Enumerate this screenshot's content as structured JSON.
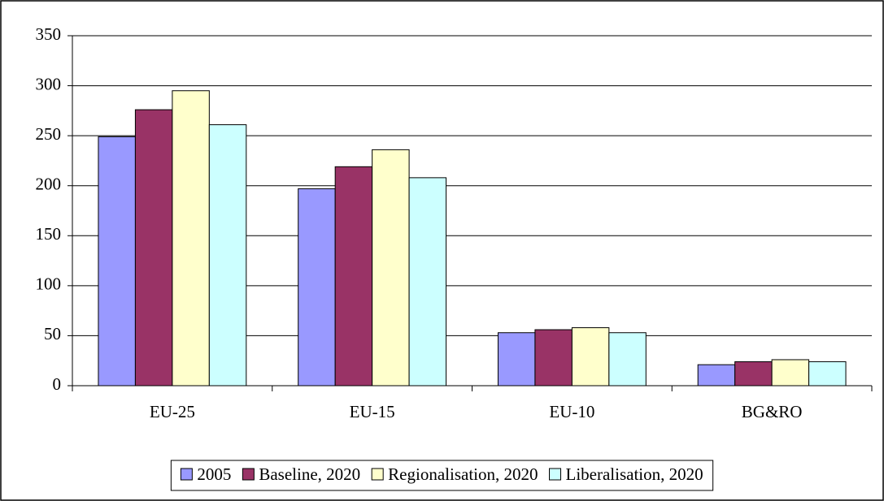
{
  "chart_data": {
    "type": "bar",
    "categories": [
      "EU-25",
      "EU-15",
      "EU-10",
      "BG&RO"
    ],
    "series": [
      {
        "name": "2005",
        "color": "#9999ff",
        "values": [
          249,
          197,
          53,
          21
        ]
      },
      {
        "name": "Baseline, 2020",
        "color": "#993366",
        "values": [
          276,
          219,
          56,
          24
        ]
      },
      {
        "name": "Regionalisation, 2020",
        "color": "#ffffcc",
        "values": [
          295,
          236,
          58,
          26
        ]
      },
      {
        "name": "Liberalisation, 2020",
        "color": "#ccffff",
        "values": [
          261,
          208,
          53,
          24
        ]
      }
    ],
    "ylim": [
      0,
      350
    ],
    "yticks": [
      0,
      50,
      100,
      150,
      200,
      250,
      300,
      350
    ],
    "grid": true,
    "legend": "bottom"
  }
}
